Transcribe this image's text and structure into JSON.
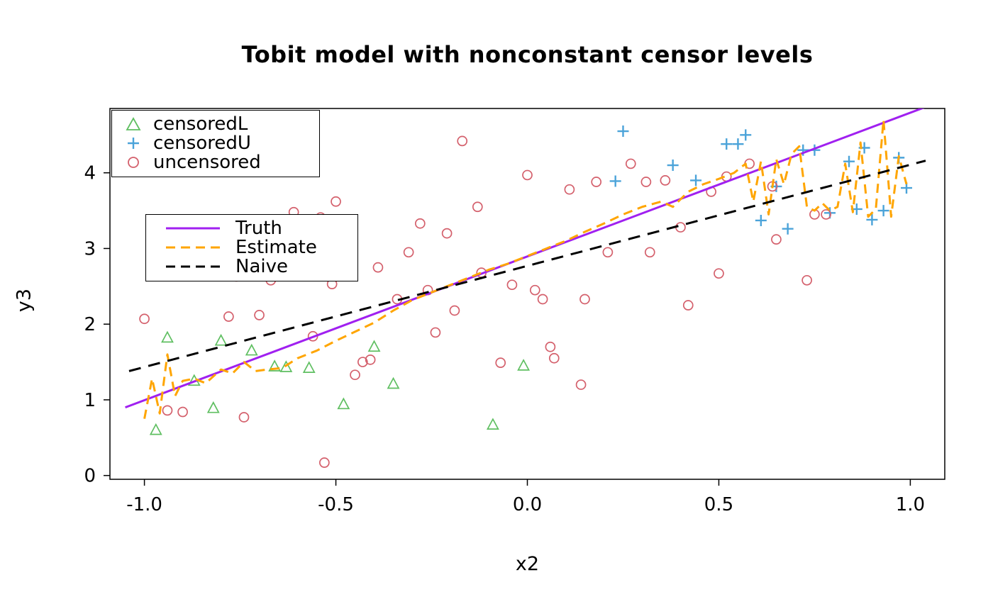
{
  "chart_data": {
    "type": "scatter",
    "title": "Tobit model with nonconstant censor levels",
    "xlabel": "x2",
    "ylabel": "y3",
    "xlim": [
      -1.09,
      1.09
    ],
    "ylim": [
      -0.05,
      4.85
    ],
    "grid": false,
    "xticks": {
      "values": [
        -1.0,
        -0.5,
        0.0,
        0.5,
        1.0
      ],
      "labels": [
        "-1.0",
        "-0.5",
        "0.0",
        "0.5",
        "1.0"
      ]
    },
    "yticks": {
      "values": [
        0,
        1,
        2,
        3,
        4
      ],
      "labels": [
        "0",
        "1",
        "2",
        "3",
        "4"
      ]
    },
    "series": [
      {
        "name": "censoredL",
        "marker": "triangle-open",
        "color": "#5fbf61",
        "points": [
          [
            -0.97,
            0.6
          ],
          [
            -0.94,
            1.82
          ],
          [
            -0.87,
            1.25
          ],
          [
            -0.82,
            0.89
          ],
          [
            -0.8,
            1.78
          ],
          [
            -0.72,
            1.65
          ],
          [
            -0.66,
            1.44
          ],
          [
            -0.63,
            1.43
          ],
          [
            -0.57,
            1.42
          ],
          [
            -0.48,
            0.94
          ],
          [
            -0.4,
            1.7
          ],
          [
            -0.35,
            1.21
          ],
          [
            -0.09,
            0.67
          ],
          [
            -0.01,
            1.45
          ]
        ]
      },
      {
        "name": "censoredU",
        "marker": "plus",
        "color": "#4ba3d9",
        "points": [
          [
            0.23,
            3.89
          ],
          [
            0.25,
            4.55
          ],
          [
            0.38,
            4.1
          ],
          [
            0.44,
            3.9
          ],
          [
            0.52,
            4.38
          ],
          [
            0.55,
            4.38
          ],
          [
            0.57,
            4.5
          ],
          [
            0.61,
            3.37
          ],
          [
            0.65,
            3.82
          ],
          [
            0.68,
            3.26
          ],
          [
            0.72,
            4.3
          ],
          [
            0.75,
            4.3
          ],
          [
            0.79,
            3.47
          ],
          [
            0.84,
            4.15
          ],
          [
            0.86,
            3.52
          ],
          [
            0.88,
            4.33
          ],
          [
            0.9,
            3.38
          ],
          [
            0.93,
            3.5
          ],
          [
            0.97,
            4.2
          ],
          [
            0.99,
            3.8
          ]
        ]
      },
      {
        "name": "uncensored",
        "marker": "circle-open",
        "color": "#d4606c",
        "points": [
          [
            -1.0,
            2.07
          ],
          [
            -0.94,
            0.86
          ],
          [
            -0.9,
            0.84
          ],
          [
            -0.78,
            2.1
          ],
          [
            -0.76,
            2.63
          ],
          [
            -0.74,
            0.77
          ],
          [
            -0.7,
            2.12
          ],
          [
            -0.67,
            2.58
          ],
          [
            -0.61,
            3.48
          ],
          [
            -0.56,
            1.84
          ],
          [
            -0.54,
            3.41
          ],
          [
            -0.53,
            0.17
          ],
          [
            -0.51,
            2.53
          ],
          [
            -0.5,
            3.62
          ],
          [
            -0.45,
            1.33
          ],
          [
            -0.43,
            1.5
          ],
          [
            -0.41,
            1.53
          ],
          [
            -0.39,
            2.75
          ],
          [
            -0.34,
            2.33
          ],
          [
            -0.31,
            2.95
          ],
          [
            -0.28,
            3.33
          ],
          [
            -0.26,
            2.45
          ],
          [
            -0.24,
            1.89
          ],
          [
            -0.21,
            3.2
          ],
          [
            -0.19,
            2.18
          ],
          [
            -0.17,
            4.42
          ],
          [
            -0.13,
            3.55
          ],
          [
            -0.12,
            2.68
          ],
          [
            -0.07,
            1.49
          ],
          [
            -0.04,
            2.52
          ],
          [
            0.0,
            3.97
          ],
          [
            0.02,
            2.45
          ],
          [
            0.04,
            2.33
          ],
          [
            0.06,
            1.7
          ],
          [
            0.07,
            1.55
          ],
          [
            0.11,
            3.78
          ],
          [
            0.14,
            1.2
          ],
          [
            0.15,
            2.33
          ],
          [
            0.18,
            3.88
          ],
          [
            0.21,
            2.95
          ],
          [
            0.27,
            4.12
          ],
          [
            0.31,
            3.88
          ],
          [
            0.32,
            2.95
          ],
          [
            0.36,
            3.9
          ],
          [
            0.4,
            3.28
          ],
          [
            0.42,
            2.25
          ],
          [
            0.48,
            3.75
          ],
          [
            0.5,
            2.67
          ],
          [
            0.52,
            3.95
          ],
          [
            0.58,
            4.12
          ],
          [
            0.64,
            3.82
          ],
          [
            0.65,
            3.12
          ],
          [
            0.73,
            2.58
          ],
          [
            0.75,
            3.45
          ],
          [
            0.78,
            3.45
          ]
        ]
      }
    ],
    "lines": [
      {
        "name": "Truth",
        "style": "solid",
        "color": "#a020f0",
        "width": 3,
        "dash": "",
        "points": [
          [
            -1.05,
            0.9
          ],
          [
            1.04,
            4.87
          ]
        ]
      },
      {
        "name": "Estimate",
        "style": "dashed",
        "color": "#ffa500",
        "width": 3,
        "dash": "13,8",
        "points": [
          [
            -1.0,
            0.75
          ],
          [
            -0.98,
            1.28
          ],
          [
            -0.96,
            0.82
          ],
          [
            -0.94,
            1.6
          ],
          [
            -0.92,
            1.05
          ],
          [
            -0.9,
            1.25
          ],
          [
            -0.87,
            1.28
          ],
          [
            -0.84,
            1.22
          ],
          [
            -0.8,
            1.4
          ],
          [
            -0.77,
            1.35
          ],
          [
            -0.74,
            1.5
          ],
          [
            -0.71,
            1.38
          ],
          [
            -0.68,
            1.4
          ],
          [
            -0.64,
            1.42
          ],
          [
            -0.6,
            1.55
          ],
          [
            -0.55,
            1.65
          ],
          [
            -0.5,
            1.78
          ],
          [
            -0.45,
            1.9
          ],
          [
            -0.4,
            2.02
          ],
          [
            -0.35,
            2.18
          ],
          [
            -0.3,
            2.32
          ],
          [
            -0.25,
            2.42
          ],
          [
            -0.2,
            2.52
          ],
          [
            -0.15,
            2.62
          ],
          [
            -0.1,
            2.72
          ],
          [
            -0.05,
            2.8
          ],
          [
            0.0,
            2.9
          ],
          [
            0.05,
            3.0
          ],
          [
            0.1,
            3.1
          ],
          [
            0.15,
            3.22
          ],
          [
            0.2,
            3.33
          ],
          [
            0.25,
            3.45
          ],
          [
            0.3,
            3.55
          ],
          [
            0.35,
            3.62
          ],
          [
            0.38,
            3.55
          ],
          [
            0.42,
            3.75
          ],
          [
            0.46,
            3.85
          ],
          [
            0.5,
            3.92
          ],
          [
            0.54,
            4.0
          ],
          [
            0.57,
            4.12
          ],
          [
            0.59,
            3.62
          ],
          [
            0.61,
            4.15
          ],
          [
            0.63,
            3.45
          ],
          [
            0.65,
            4.18
          ],
          [
            0.67,
            3.85
          ],
          [
            0.69,
            4.25
          ],
          [
            0.71,
            4.35
          ],
          [
            0.73,
            3.55
          ],
          [
            0.75,
            3.5
          ],
          [
            0.77,
            3.6
          ],
          [
            0.79,
            3.5
          ],
          [
            0.81,
            3.55
          ],
          [
            0.83,
            4.12
          ],
          [
            0.85,
            3.48
          ],
          [
            0.87,
            4.4
          ],
          [
            0.89,
            3.42
          ],
          [
            0.91,
            3.52
          ],
          [
            0.93,
            4.7
          ],
          [
            0.95,
            3.42
          ],
          [
            0.97,
            4.22
          ],
          [
            0.99,
            3.85
          ]
        ]
      },
      {
        "name": "Naive",
        "style": "dashed",
        "color": "#000000",
        "width": 3,
        "dash": "17,11",
        "points": [
          [
            -1.04,
            1.38
          ],
          [
            1.04,
            4.16
          ]
        ]
      }
    ],
    "legend_points_position": "top-left",
    "legend_lines_position": "middle-left"
  }
}
